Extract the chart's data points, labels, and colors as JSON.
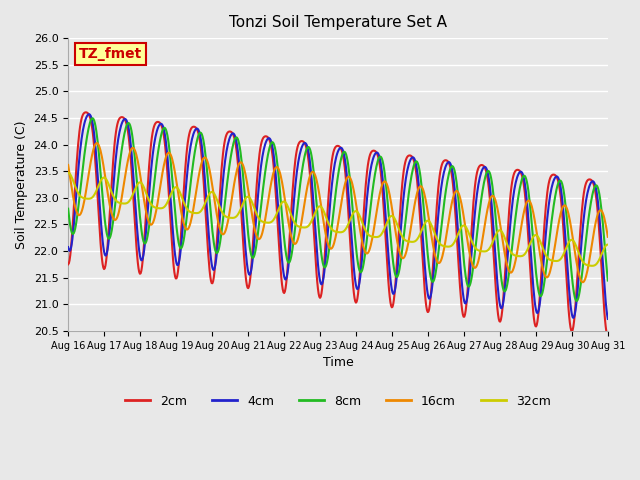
{
  "title": "Tonzi Soil Temperature Set A",
  "xlabel": "Time",
  "ylabel": "Soil Temperature (C)",
  "ylim": [
    20.5,
    26.0
  ],
  "yticks": [
    20.5,
    21.0,
    21.5,
    22.0,
    22.5,
    23.0,
    23.5,
    24.0,
    24.5,
    25.0,
    25.5,
    26.0
  ],
  "xtick_labels": [
    "Aug 16",
    "Aug 17",
    "Aug 18",
    "Aug 19",
    "Aug 20",
    "Aug 21",
    "Aug 22",
    "Aug 23",
    "Aug 24",
    "Aug 25",
    "Aug 26",
    "Aug 27",
    "Aug 28",
    "Aug 29",
    "Aug 30",
    "Aug 31"
  ],
  "series": {
    "2cm": {
      "color": "#dd2222",
      "linewidth": 1.5
    },
    "4cm": {
      "color": "#2222cc",
      "linewidth": 1.5
    },
    "8cm": {
      "color": "#22bb22",
      "linewidth": 1.5
    },
    "16cm": {
      "color": "#ee8800",
      "linewidth": 1.5
    },
    "32cm": {
      "color": "#cccc00",
      "linewidth": 1.5
    }
  },
  "bg_color": "#e8e8e8",
  "plot_bg_color": "#e8e8e8",
  "grid_color": "#ffffff",
  "label_box": {
    "text": "TZ_fmet",
    "bg_color": "#ffff99",
    "border_color": "#cc0000",
    "text_color": "#cc0000",
    "fontsize": 10
  }
}
